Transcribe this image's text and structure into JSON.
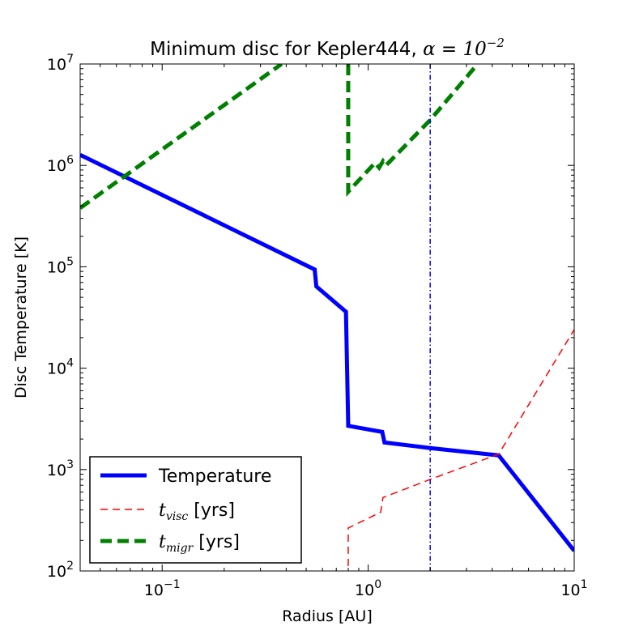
{
  "chart_data": {
    "type": "line",
    "title": "Minimum disc for Kepler444, ",
    "title_math": "α = 10",
    "title_math_exp": "−2",
    "xlabel": "Radius [AU]",
    "ylabel": "Disc Temperature [K]",
    "xscale": "log",
    "yscale": "log",
    "xlim": [
      0.04,
      10
    ],
    "ylim": [
      100,
      10000000
    ],
    "x_ticks": [
      {
        "value": 0.1,
        "base": "10",
        "exp": "−1"
      },
      {
        "value": 1,
        "base": "10",
        "exp": "0"
      },
      {
        "value": 10,
        "base": "10",
        "exp": "1"
      }
    ],
    "y_ticks": [
      {
        "value": 100,
        "base": "10",
        "exp": "2"
      },
      {
        "value": 1000,
        "base": "10",
        "exp": "3"
      },
      {
        "value": 10000,
        "base": "10",
        "exp": "4"
      },
      {
        "value": 100000,
        "base": "10",
        "exp": "5"
      },
      {
        "value": 1000000,
        "base": "10",
        "exp": "6"
      },
      {
        "value": 10000000,
        "base": "10",
        "exp": "7"
      }
    ],
    "vline": {
      "x": 2.0,
      "color": "#0000ff",
      "style": "dash-dot"
    },
    "series": [
      {
        "name": "Temperature",
        "legend_label": "Temperature",
        "color": "#0000ff",
        "style": "solid",
        "width": "thick",
        "points": [
          [
            0.04,
            1270000
          ],
          [
            0.55,
            94000
          ],
          [
            0.56,
            64000
          ],
          [
            0.78,
            36000
          ],
          [
            0.8,
            2700
          ],
          [
            1.17,
            2350
          ],
          [
            1.2,
            1850
          ],
          [
            2.0,
            1630
          ],
          [
            4.3,
            1380
          ],
          [
            10.0,
            158
          ]
        ]
      },
      {
        "name": "t_visc",
        "legend_label_math": "t",
        "legend_label_sub": "visc",
        "legend_label_suffix": " [yrs]",
        "color": "#ff0000",
        "style": "dashed",
        "width": "thin",
        "points": [
          [
            0.8,
            85
          ],
          [
            0.8,
            265
          ],
          [
            1.15,
            380
          ],
          [
            1.18,
            530
          ],
          [
            2.0,
            800
          ],
          [
            4.3,
            1420
          ],
          [
            10.0,
            24000
          ]
        ]
      },
      {
        "name": "t_migr",
        "legend_label_math": "t",
        "legend_label_sub": "migr",
        "legend_label_suffix": " [yrs]",
        "color": "#008000",
        "style": "dashed",
        "width": "thick",
        "points": [
          [
            0.04,
            380000
          ],
          [
            0.38,
            10000000
          ],
          null,
          [
            0.8,
            10000000
          ],
          [
            0.8,
            550000
          ],
          [
            1.08,
            1060000
          ],
          [
            1.13,
            950000
          ],
          [
            1.18,
            1100000
          ],
          [
            1.22,
            1000000
          ],
          [
            2.0,
            2800000
          ],
          [
            3.4,
            10000000
          ]
        ]
      }
    ],
    "legend_position": "lower-left"
  }
}
